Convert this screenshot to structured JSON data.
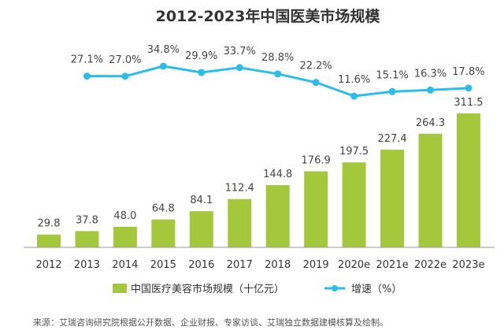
{
  "chart_data": {
    "type": "bar+line",
    "title": "2012-2023年中国医美市场规模",
    "categories": [
      "2012",
      "2013",
      "2014",
      "2015",
      "2016",
      "2017",
      "2018",
      "2019",
      "2020e",
      "2021e",
      "2022e",
      "2023e"
    ],
    "series": [
      {
        "name": "中国医疗美容市场规模（十亿元）",
        "type": "bar",
        "values": [
          29.8,
          37.8,
          48.0,
          64.8,
          84.1,
          112.4,
          144.8,
          176.9,
          197.5,
          227.4,
          264.3,
          311.5
        ],
        "labels": [
          "29.8",
          "37.8",
          "48.0",
          "64.8",
          "84.1",
          "112.4",
          "144.8",
          "176.9",
          "197.5",
          "227.4",
          "264.3",
          "311.5"
        ]
      },
      {
        "name": "增速（%）",
        "type": "line",
        "values": [
          null,
          27.1,
          27.0,
          34.8,
          29.9,
          33.7,
          28.8,
          22.2,
          11.6,
          15.1,
          16.3,
          17.8
        ],
        "labels": [
          "",
          "27.1%",
          "27.0%",
          "34.8%",
          "29.9%",
          "33.7%",
          "28.8%",
          "22.2%",
          "11.6%",
          "15.1%",
          "16.3%",
          "17.8%"
        ]
      }
    ],
    "legend_position": "bottom",
    "grid": false,
    "colors": {
      "bar": "#a3c83b",
      "line": "#2bbde8"
    }
  },
  "source": "来源：艾瑞咨询研究院根据公开数据、企业财报、专家访谈、艾瑞独立数据建模核算及绘制。"
}
